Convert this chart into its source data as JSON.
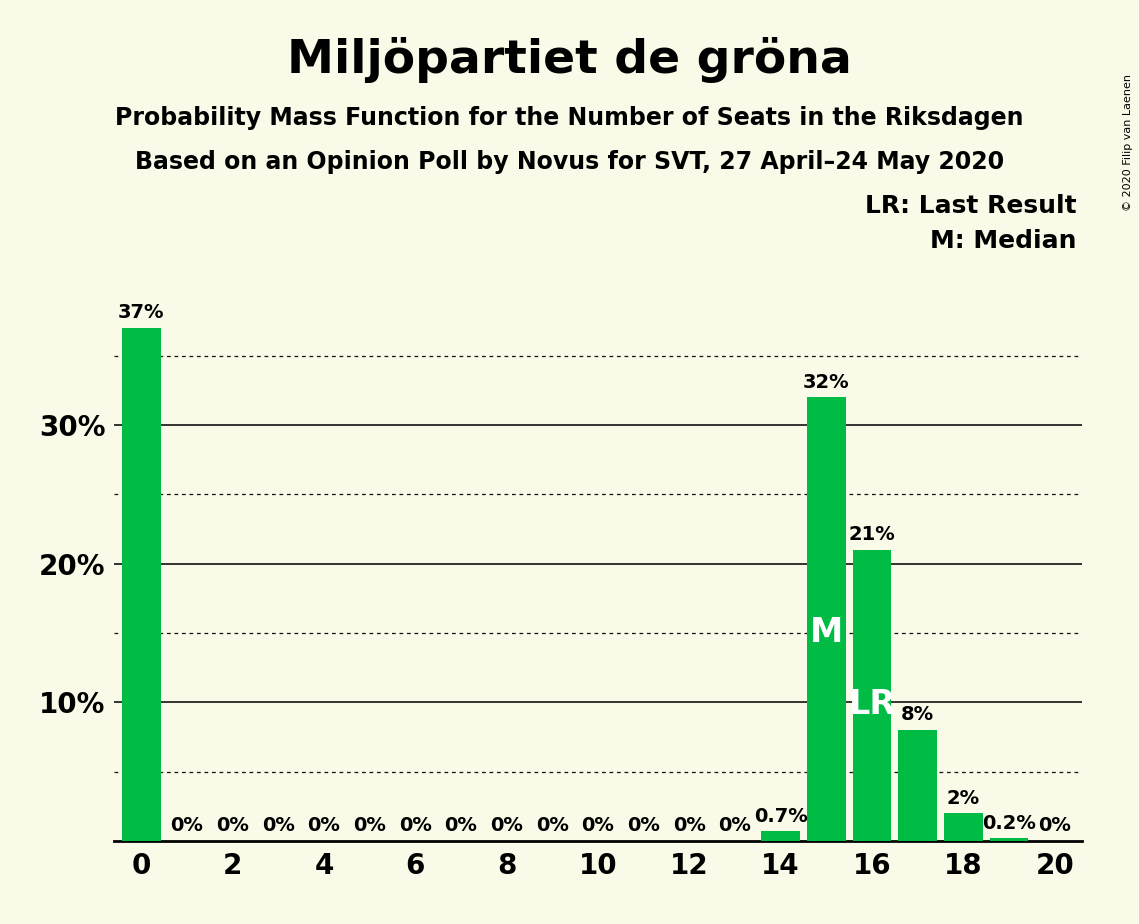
{
  "title": "Miljöpartiet de gröna",
  "subtitle1": "Probability Mass Function for the Number of Seats in the Riksdagen",
  "subtitle2": "Based on an Opinion Poll by Novus for SVT, 27 April–24 May 2020",
  "copyright": "© 2020 Filip van Laenen",
  "background_color": "#FAFAE8",
  "bar_color": "#00BB44",
  "categories": [
    0,
    1,
    2,
    3,
    4,
    5,
    6,
    7,
    8,
    9,
    10,
    11,
    12,
    13,
    14,
    15,
    16,
    17,
    18,
    19,
    20
  ],
  "values": [
    37,
    0,
    0,
    0,
    0,
    0,
    0,
    0,
    0,
    0,
    0,
    0,
    0,
    0,
    0.7,
    32,
    21,
    8,
    2,
    0.2,
    0
  ],
  "labels": [
    "37%",
    "0%",
    "0%",
    "0%",
    "0%",
    "0%",
    "0%",
    "0%",
    "0%",
    "0%",
    "0%",
    "0%",
    "0%",
    "0%",
    "0.7%",
    "32%",
    "21%",
    "8%",
    "2%",
    "0.2%",
    "0%"
  ],
  "median_seat": 15,
  "last_result_seat": 16,
  "median_label": "M",
  "last_result_label": "LR",
  "xlim": [
    -0.6,
    20.6
  ],
  "ylim": [
    0,
    40
  ],
  "xticks": [
    0,
    2,
    4,
    6,
    8,
    10,
    12,
    14,
    16,
    18,
    20
  ],
  "major_gridlines": [
    10,
    20,
    30
  ],
  "dotted_gridlines": [
    5,
    15,
    25,
    35
  ],
  "title_fontsize": 34,
  "subtitle_fontsize": 17,
  "axis_fontsize": 20,
  "bar_label_fontsize": 14,
  "legend_fontsize": 18,
  "ml_fontsize": 24
}
